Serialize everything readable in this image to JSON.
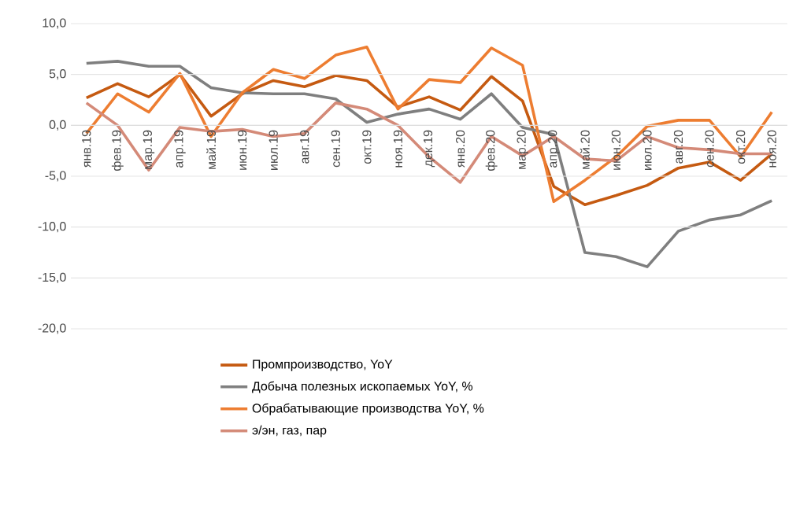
{
  "chart_data": {
    "type": "line",
    "categories": [
      "янв.19",
      "фев.19",
      "мар.19",
      "апр.19",
      "май.19",
      "июн.19",
      "июл.19",
      "авг.19",
      "сен.19",
      "окт.19",
      "ноя.19",
      "дек.19",
      "янв.20",
      "фев.20",
      "мар.20",
      "апр.20",
      "май.20",
      "июн.20",
      "июл.20",
      "авг.20",
      "сен.20",
      "окт.20",
      "ноя.20"
    ],
    "series": [
      {
        "name": "Промпроизводство, YoY",
        "color": "#c55a11",
        "values": [
          2.7,
          4.1,
          2.8,
          5.0,
          0.9,
          3.1,
          4.4,
          3.8,
          4.9,
          4.4,
          1.8,
          2.8,
          1.5,
          4.8,
          2.4,
          -6.0,
          -7.8,
          -6.9,
          -5.9,
          -4.2,
          -3.6,
          -5.4,
          -2.8
        ]
      },
      {
        "name": "Добыча полезных ископаемых YoY, %",
        "color": "#7f7f7f",
        "values": [
          6.1,
          6.3,
          5.8,
          5.8,
          3.7,
          3.2,
          3.1,
          3.1,
          2.6,
          0.3,
          1.1,
          1.6,
          0.6,
          3.1,
          -0.2,
          -0.9,
          -12.5,
          -12.9,
          -13.9,
          -10.4,
          -9.3,
          -8.8,
          -7.4
        ]
      },
      {
        "name": "Обрабатывающие производства YoY, %",
        "color": "#ed7d31",
        "values": [
          -0.8,
          3.1,
          1.3,
          5.1,
          -1.1,
          3.2,
          5.5,
          4.6,
          6.9,
          7.7,
          1.6,
          4.5,
          4.2,
          7.6,
          5.9,
          -7.5,
          -5.4,
          -3.1,
          -0.1,
          0.5,
          0.5,
          -3.1,
          1.3
        ]
      },
      {
        "name": "э/эн, газ, пар",
        "color": "#d48a78",
        "values": [
          2.2,
          0.0,
          -4.4,
          -0.2,
          -0.6,
          -0.4,
          -1.1,
          -0.8,
          2.2,
          1.6,
          0.0,
          -3.1,
          -5.6,
          -1.1,
          -3.0,
          -1.1,
          -3.3,
          -3.5,
          -1.1,
          -2.2,
          -2.4,
          -2.8,
          -2.8
        ]
      }
    ],
    "ylim": [
      -20,
      10
    ],
    "yticks": [
      {
        "value": -20,
        "label": "-20,0"
      },
      {
        "value": -15,
        "label": "-15,0"
      },
      {
        "value": -10,
        "label": "-10,0"
      },
      {
        "value": -5,
        "label": "-5,0"
      },
      {
        "value": 0,
        "label": "0,0"
      },
      {
        "value": 5,
        "label": "5,0"
      },
      {
        "value": 10,
        "label": "10,0"
      }
    ],
    "grid": "y",
    "legend": "bottom",
    "marker": "none",
    "line_style": "solid"
  }
}
